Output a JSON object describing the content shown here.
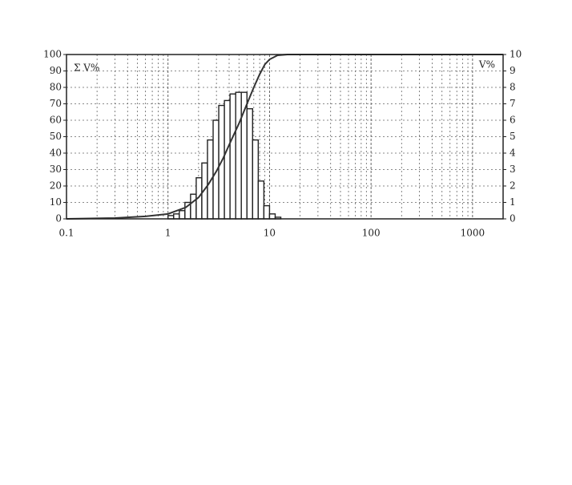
{
  "chart_data": {
    "type": "histogram",
    "xscale": "log",
    "xlim": [
      0.1,
      2000
    ],
    "xticks": [
      0.1,
      1,
      10,
      100,
      1000
    ],
    "xminorticks": [
      0.2,
      0.3,
      0.4,
      0.5,
      0.6,
      0.7,
      0.8,
      0.9,
      2,
      3,
      4,
      5,
      6,
      7,
      8,
      9,
      20,
      30,
      40,
      50,
      60,
      70,
      80,
      90,
      200,
      300,
      400,
      500,
      600,
      700,
      800,
      900
    ],
    "ylim": [
      0,
      100
    ],
    "yticks": [
      0,
      10,
      20,
      30,
      40,
      50,
      60,
      70,
      80,
      90,
      100
    ],
    "y2lim": [
      0,
      10
    ],
    "y2ticks": [
      0,
      1,
      2,
      3,
      4,
      5,
      6,
      7,
      8,
      9,
      10
    ],
    "grid": true,
    "y_label": "Σ V%",
    "y2_label": "V%",
    "bins": [
      1,
      1.137,
      1.292,
      1.468,
      1.668,
      1.896,
      2.154,
      2.448,
      2.783,
      3.162,
      3.594,
      4.084,
      4.642,
      5.275,
      5.995,
      6.813,
      7.743,
      8.8,
      10,
      11.37,
      12.92
    ],
    "counts": [
      0.2,
      0.3,
      0.5,
      1.0,
      1.5,
      2.5,
      3.4,
      4.8,
      6.0,
      6.9,
      7.2,
      7.6,
      7.7,
      7.7,
      6.7,
      4.8,
      2.3,
      0.8,
      0.3,
      0.1
    ],
    "counts_axis": "y2",
    "color": "#222222",
    "cumulative": {
      "x": [
        0.1,
        0.3,
        0.6,
        1,
        1.5,
        2,
        2.5,
        3,
        3.5,
        4,
        5,
        6,
        7,
        8,
        9,
        10,
        12,
        15,
        100,
        2000
      ],
      "values": [
        0,
        0.5,
        1.5,
        3,
        7,
        13,
        21,
        29,
        37,
        45,
        58,
        70,
        80,
        88,
        94,
        97,
        99.5,
        100,
        100,
        100
      ],
      "axis": "y",
      "color": "#333333"
    }
  }
}
